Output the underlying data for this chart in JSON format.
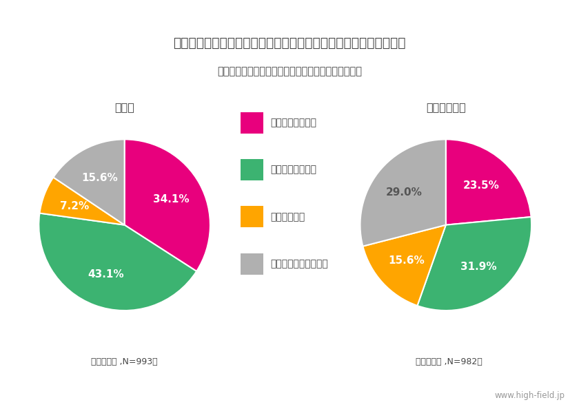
{
  "title": "「あなたは、１人で利用する場合、どの飲食店を利用しますか？」",
  "subtitle": "（アンケート対象者：関東圏在住２０歳以上の男女）",
  "pie1_title": "全　体",
  "pie1_note": "（単一回答 ,N=993）",
  "pie1_values": [
    34.1,
    43.1,
    7.2,
    15.6
  ],
  "pie2_title": "飲食業従事者",
  "pie2_note": "（単一回答 ,N=982）",
  "pie2_values": [
    23.5,
    31.9,
    15.6,
    29.0
  ],
  "labels": [
    "屋内完全禁煙の店",
    "分煙されている店",
    "喫煙ＯＫの店",
    "どちらでも気にしない"
  ],
  "colors": [
    "#E8007D",
    "#3CB371",
    "#FFA500",
    "#B0B0B0"
  ],
  "bg_color": "#FFFFFF",
  "text_color": "#444444",
  "watermark": "www.high-field.jp"
}
